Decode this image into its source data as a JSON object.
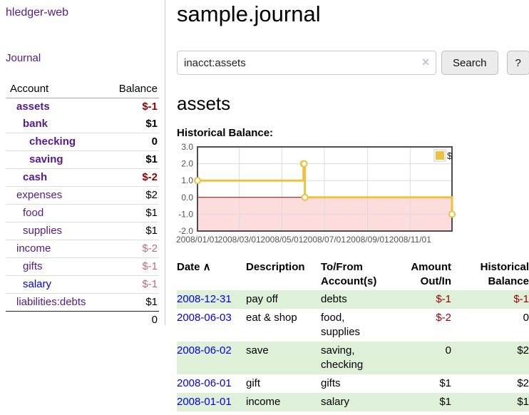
{
  "app": {
    "brand": "hledger-web",
    "nav_journal": "Journal"
  },
  "sidebar": {
    "table_headers": {
      "account": "Account",
      "balance": "Balance"
    },
    "accounts": [
      {
        "name": "assets",
        "level": 1,
        "bold": true,
        "link_tone": "visited",
        "balance": "$-1",
        "balance_tone": "neg-strong"
      },
      {
        "name": "bank",
        "level": 2,
        "bold": true,
        "link_tone": "visited",
        "balance": "$1",
        "balance_tone": "pos"
      },
      {
        "name": "checking",
        "level": 3,
        "bold": true,
        "link_tone": "visited",
        "balance": "0",
        "balance_tone": "pos"
      },
      {
        "name": "saving",
        "level": 3,
        "bold": true,
        "link_tone": "visited",
        "balance": "$1",
        "balance_tone": "pos"
      },
      {
        "name": "cash",
        "level": 2,
        "bold": true,
        "link_tone": "visited",
        "balance": "$-2",
        "balance_tone": "neg-strong"
      },
      {
        "name": "expenses",
        "level": 1,
        "bold": false,
        "link_tone": "visited",
        "balance": "$2",
        "balance_tone": "pos"
      },
      {
        "name": "food",
        "level": 2,
        "bold": false,
        "link_tone": "visited",
        "balance": "$1",
        "balance_tone": "pos"
      },
      {
        "name": "supplies",
        "level": 2,
        "bold": false,
        "link_tone": "visited",
        "balance": "$1",
        "balance_tone": "pos"
      },
      {
        "name": "income",
        "level": 1,
        "bold": false,
        "link_tone": "visited",
        "balance": "$-2",
        "balance_tone": "neg-muted"
      },
      {
        "name": "gifts",
        "level": 2,
        "bold": false,
        "link_tone": "visited",
        "balance": "$-1",
        "balance_tone": "neg-muted"
      },
      {
        "name": "salary",
        "level": 2,
        "bold": false,
        "link_tone": "unvisited",
        "balance": "$-1",
        "balance_tone": "neg-muted"
      },
      {
        "name": "liabilities:debts",
        "level": 1,
        "bold": false,
        "link_tone": "visited",
        "balance": "$1",
        "balance_tone": "pos"
      }
    ],
    "total": "0"
  },
  "header": {
    "title": "sample.journal"
  },
  "search": {
    "value": "inacct:assets",
    "clear_label": "✕",
    "button": "Search",
    "help_button": "?"
  },
  "account_page": {
    "heading": "assets",
    "chart_label": "Historical Balance:"
  },
  "chart_data": {
    "type": "line",
    "step": true,
    "title": "Historical Balance of assets",
    "legend": {
      "position": "top-right",
      "label": "$"
    },
    "line_color": "#edc240",
    "marker_fill": "#ffffff",
    "negative_region_color": "#fcdcdc",
    "zero_line_color": "#8b0000",
    "grid_color": "#dcdcdc",
    "border_color": "#4d4d4d",
    "tick_label_color": "#545454",
    "ylim": [
      -2,
      3
    ],
    "xlim_days": [
      0,
      365
    ],
    "y_ticks": [
      {
        "v": 3,
        "label": "3.0"
      },
      {
        "v": 2,
        "label": "2.0"
      },
      {
        "v": 1,
        "label": "1.0"
      },
      {
        "v": 0,
        "label": "0.0"
      },
      {
        "v": -1,
        "label": "-1.0"
      },
      {
        "v": -2,
        "label": "-2.0"
      }
    ],
    "x_ticks": [
      {
        "day": 0,
        "label": "2008/01/01"
      },
      {
        "day": 60,
        "label": "2008/03/01"
      },
      {
        "day": 121,
        "label": "2008/05/01"
      },
      {
        "day": 182,
        "label": "2008/07/01"
      },
      {
        "day": 244,
        "label": "2008/09/01"
      },
      {
        "day": 305,
        "label": "2008/11/01"
      }
    ],
    "series": [
      {
        "name": "$",
        "points": [
          {
            "date": "2008-01-01",
            "day": 0,
            "value": 1
          },
          {
            "date": "2008-06-01",
            "day": 152,
            "value": 2
          },
          {
            "date": "2008-06-02",
            "day": 153,
            "value": 2
          },
          {
            "date": "2008-06-03",
            "day": 154,
            "value": 0
          },
          {
            "date": "2008-12-31",
            "day": 365,
            "value": -1
          }
        ]
      }
    ]
  },
  "register": {
    "sort_icon": "∧",
    "headers": [
      {
        "line1": "Date",
        "align": "left"
      },
      {
        "line1": "Description",
        "align": "left"
      },
      {
        "line1": "To/From",
        "line2": "Account(s)",
        "align": "left"
      },
      {
        "line1": "Amount",
        "line2": "Out/In",
        "align": "right"
      },
      {
        "line1": "Historical",
        "line2": "Balance",
        "align": "right"
      }
    ],
    "rows": [
      {
        "date": "2008-12-31",
        "description": "pay off",
        "accounts": "debts",
        "amount": "$-1",
        "amount_neg": true,
        "balance": "$-1",
        "balance_neg": true
      },
      {
        "date": "2008-06-03",
        "description": "eat & shop",
        "accounts": "food, supplies",
        "amount": "$-2",
        "amount_neg": true,
        "balance": "0",
        "balance_neg": false
      },
      {
        "date": "2008-06-02",
        "description": "save",
        "accounts": "saving, checking",
        "amount": "0",
        "amount_neg": false,
        "balance": "$2",
        "balance_neg": false
      },
      {
        "date": "2008-06-01",
        "description": "gift",
        "accounts": "gifts",
        "amount": "$1",
        "amount_neg": false,
        "balance": "$2",
        "balance_neg": false
      },
      {
        "date": "2008-01-01",
        "description": "income",
        "accounts": "salary",
        "amount": "$1",
        "amount_neg": false,
        "balance": "$1",
        "balance_neg": false
      }
    ]
  },
  "colors": {
    "link_purple": "#551a8b",
    "link_blue": "#0000ee",
    "negative_strong": "#990000",
    "negative_muted": "#c46b71",
    "row_highlight_green": "#dff0d8",
    "chart_line_gold": "#edc240"
  }
}
